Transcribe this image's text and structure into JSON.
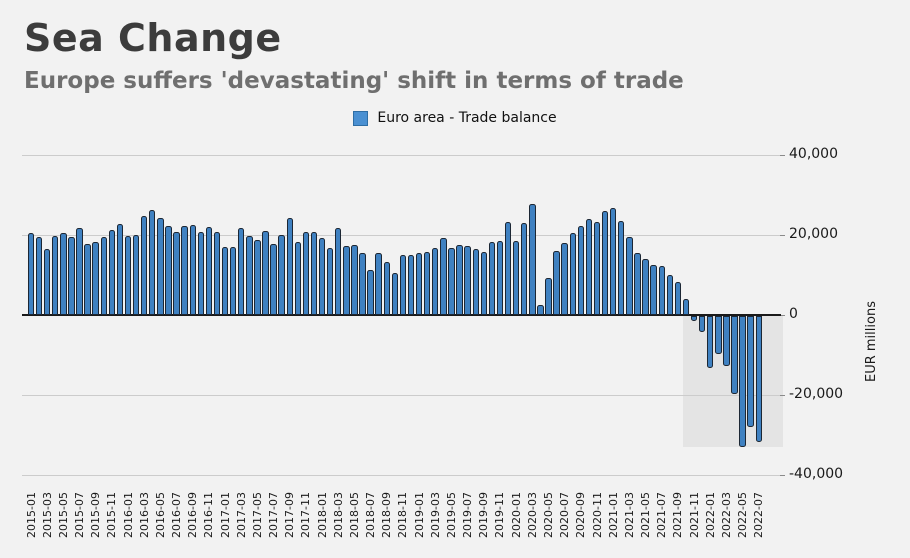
{
  "header": {
    "title": "Sea Change",
    "subtitle": "Europe suffers 'devastating' shift in terms of trade"
  },
  "legend": {
    "label": "Euro area - Trade balance",
    "marker_color": "#4a90d2"
  },
  "chart_data": {
    "type": "bar",
    "title": "Sea Change",
    "subtitle": "Europe suffers 'devastating' shift in terms of trade",
    "series_name": "Euro area - Trade balance",
    "ylabel": "EUR millions",
    "xlabel": "",
    "ylim": [
      -40000,
      40000
    ],
    "grid": "horizontal",
    "legend_position": "top-center",
    "x_tick_step": 2,
    "y_ticks": [
      40000,
      20000,
      0,
      -20000,
      -40000
    ],
    "y_tick_labels": [
      "40,000",
      "20,000",
      "0",
      "-20,000",
      "-40,000"
    ],
    "bar_color": "#3f81c1",
    "bar_border_color": "#1c2734",
    "highlight_region": {
      "from": "2021-10",
      "to": "2022-07",
      "color": "#e4e4e4"
    },
    "categories": [
      "2015-01",
      "2015-02",
      "2015-03",
      "2015-04",
      "2015-05",
      "2015-06",
      "2015-07",
      "2015-08",
      "2015-09",
      "2015-10",
      "2015-11",
      "2015-12",
      "2016-01",
      "2016-02",
      "2016-03",
      "2016-04",
      "2016-05",
      "2016-06",
      "2016-07",
      "2016-08",
      "2016-09",
      "2016-10",
      "2016-11",
      "2016-12",
      "2017-01",
      "2017-02",
      "2017-03",
      "2017-04",
      "2017-05",
      "2017-06",
      "2017-07",
      "2017-08",
      "2017-09",
      "2017-10",
      "2017-11",
      "2017-12",
      "2018-01",
      "2018-02",
      "2018-03",
      "2018-04",
      "2018-05",
      "2018-06",
      "2018-07",
      "2018-08",
      "2018-09",
      "2018-10",
      "2018-11",
      "2018-12",
      "2019-01",
      "2019-02",
      "2019-03",
      "2019-04",
      "2019-05",
      "2019-06",
      "2019-07",
      "2019-08",
      "2019-09",
      "2019-10",
      "2019-11",
      "2019-12",
      "2020-01",
      "2020-02",
      "2020-03",
      "2020-04",
      "2020-05",
      "2020-06",
      "2020-07",
      "2020-08",
      "2020-09",
      "2020-10",
      "2020-11",
      "2020-12",
      "2021-01",
      "2021-02",
      "2021-03",
      "2021-04",
      "2021-05",
      "2021-06",
      "2021-07",
      "2021-08",
      "2021-09",
      "2021-10",
      "2021-11",
      "2021-12",
      "2022-01",
      "2022-02",
      "2022-03",
      "2022-04",
      "2022-05",
      "2022-06",
      "2022-07"
    ],
    "values": [
      20400,
      19600,
      16400,
      19800,
      20600,
      19400,
      21700,
      17700,
      18300,
      19500,
      21300,
      22800,
      19800,
      19900,
      24700,
      26300,
      24200,
      22300,
      20800,
      22300,
      22400,
      20800,
      22000,
      20800,
      16900,
      17100,
      21700,
      19800,
      18800,
      21000,
      17800,
      20000,
      24200,
      18300,
      20800,
      20700,
      19200,
      16700,
      21800,
      17300,
      17500,
      15400,
      11300,
      15400,
      13300,
      10400,
      15000,
      14900,
      15400,
      15800,
      16800,
      19200,
      16800,
      17500,
      17300,
      16400,
      15700,
      18200,
      18600,
      23300,
      18600,
      23100,
      27700,
      2500,
      9200,
      16000,
      18100,
      20400,
      22300,
      24000,
      23300,
      26000,
      26800,
      23500,
      19500,
      15500,
      14000,
      12500,
      12200,
      10000,
      8200,
      4100,
      -1200,
      -4000,
      -13000,
      -9600,
      -12600,
      -19400,
      -32700,
      -27700,
      -31500
    ]
  }
}
